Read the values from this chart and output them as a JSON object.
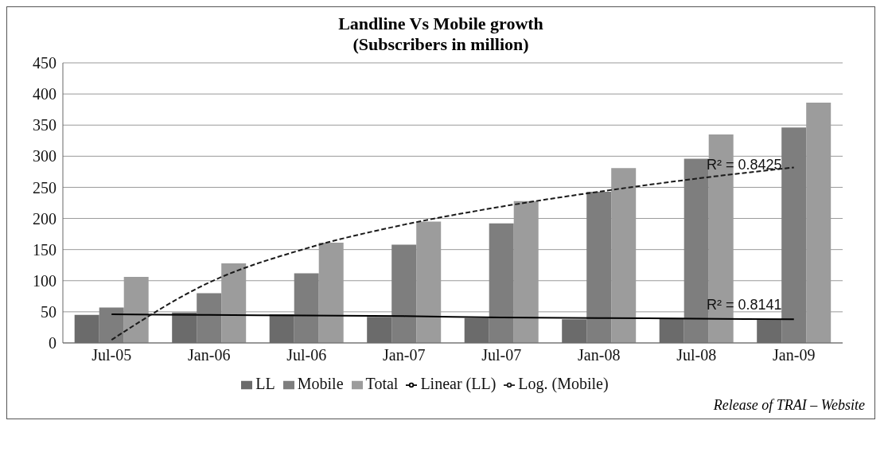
{
  "chart_data": {
    "type": "bar",
    "title": "Landline Vs Mobile growth",
    "subtitle": "(Subscribers in million)",
    "categories": [
      "Jul-05",
      "Jan-06",
      "Jul-06",
      "Jan-07",
      "Jul-07",
      "Jan-08",
      "Jul-08",
      "Jan-09"
    ],
    "series": [
      {
        "name": "LL",
        "color": "#6b6b6b",
        "values": [
          45,
          49,
          46,
          42,
          40,
          38,
          40,
          37
        ]
      },
      {
        "name": "Mobile",
        "color": "#7e7e7e",
        "values": [
          57,
          80,
          112,
          158,
          192,
          243,
          296,
          346
        ]
      },
      {
        "name": "Total",
        "color": "#9c9c9c",
        "values": [
          106,
          128,
          161,
          195,
          228,
          281,
          335,
          386
        ]
      },
      {
        "name": "Linear (LL)",
        "type": "line",
        "color": "#000000",
        "line_style": "solid",
        "values": [
          46,
          45,
          44,
          43,
          41,
          40,
          39,
          38
        ]
      },
      {
        "name": "Log. (Mobile)",
        "type": "line",
        "color": "#1a1a1a",
        "line_style": "dashed",
        "values": [
          5,
          97,
          152,
          190,
          219,
          243,
          264,
          282
        ]
      }
    ],
    "ylim": [
      0,
      450
    ],
    "yticks": [
      0,
      50,
      100,
      150,
      200,
      250,
      300,
      350,
      400,
      450
    ],
    "grid": "y",
    "legend": "bottom",
    "marker": "none",
    "annotations": [
      {
        "text": "R² = 0.8425",
        "x": "Jul-08",
        "y": 264
      },
      {
        "text": "R² = 0.8141",
        "x": "Jul-08",
        "y": 39
      },
      "Release of TRAI – Website"
    ]
  }
}
